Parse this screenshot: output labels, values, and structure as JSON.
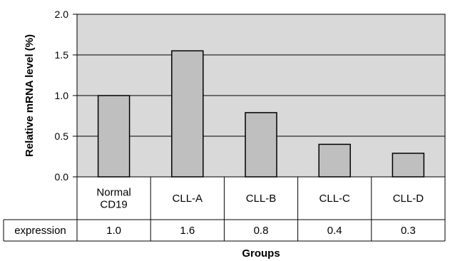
{
  "chart_data": {
    "type": "bar",
    "categories": [
      "Normal CD19",
      "CLL-A",
      "CLL-B",
      "CLL-C",
      "CLL-D"
    ],
    "category_lines": [
      [
        "Normal",
        "CD19"
      ],
      [
        "CLL-A"
      ],
      [
        "CLL-B"
      ],
      [
        "CLL-C"
      ],
      [
        "CLL-D"
      ]
    ],
    "series": [
      {
        "name": "expression",
        "values": [
          1.0,
          1.55,
          0.79,
          0.4,
          0.29
        ]
      }
    ],
    "table": {
      "row_label": "expression",
      "cells": [
        "1.0",
        "1.6",
        "0.8",
        "0.4",
        "0.3"
      ]
    },
    "yticks": [
      "0.0",
      "0.5",
      "1.0",
      "1.5",
      "2.0"
    ],
    "title": "",
    "xlabel": "Groups",
    "ylabel": "Relative mRNA level (%)",
    "ylim": [
      0,
      2.0
    ],
    "grid": true,
    "colors": {
      "plot_background": "#d9d9d9",
      "bar_fill": "#bfbfbf",
      "bar_stroke": "#000000",
      "grid": "#000000",
      "table_line": "#000000"
    }
  }
}
